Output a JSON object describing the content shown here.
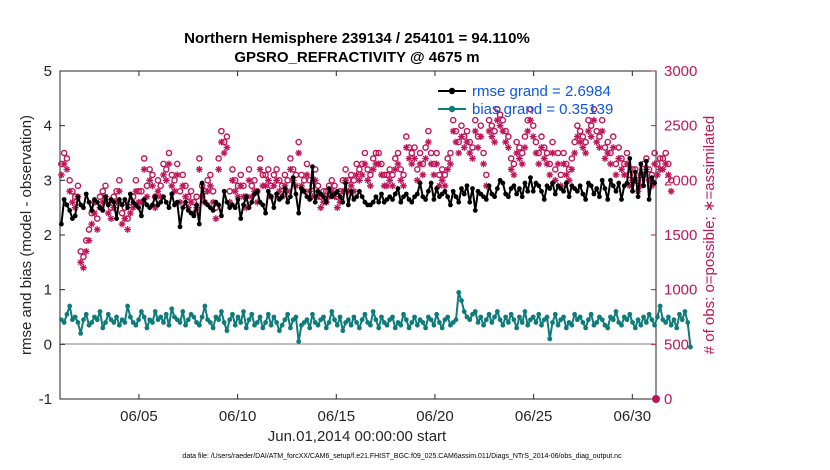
{
  "chart_data": {
    "type": "line",
    "title": "Northern Hemisphere 239134 / 254101 = 94.110%",
    "subtitle": "GPSRO_REFRACTIVITY @ 4675 m",
    "xlabel": "Jun.01,2014 00:00:00 start",
    "ylabel": "rmse and bias (model - observation)",
    "ylabel_right": "# of obs: o=possible; ∗=assimilated",
    "xlim": [
      1.0,
      31.2
    ],
    "ylim": [
      -1,
      5
    ],
    "ylim_right": [
      0,
      3000
    ],
    "x_ticks": [
      {
        "value": 5,
        "label": "06/05"
      },
      {
        "value": 10,
        "label": "06/10"
      },
      {
        "value": 15,
        "label": "06/15"
      },
      {
        "value": 20,
        "label": "06/20"
      },
      {
        "value": 25,
        "label": "06/25"
      },
      {
        "value": 30,
        "label": "06/30"
      }
    ],
    "y_ticks": [
      "-1",
      "0",
      "1",
      "2",
      "3",
      "4",
      "5"
    ],
    "y_ticks_right": [
      "0",
      "500",
      "1000",
      "1500",
      "2000",
      "2500",
      "3000"
    ],
    "zero_line": 0,
    "legend": {
      "position": "top-right",
      "entries": [
        "rmse grand  = 2.6984",
        "bias grand  = 0.35139"
      ]
    },
    "series": [
      {
        "name": "rmse",
        "color": "#000000",
        "values": [
          2.2,
          2.65,
          2.55,
          2.45,
          2.3,
          2.35,
          2.7,
          2.55,
          2.5,
          2.75,
          2.6,
          2.45,
          2.65,
          2.6,
          2.5,
          2.45,
          2.7,
          2.55,
          2.65,
          2.6,
          2.3,
          2.65,
          2.55,
          2.65,
          2.5,
          2.75,
          2.6,
          2.55,
          2.5,
          2.35,
          2.65,
          2.55,
          2.5,
          2.55,
          2.7,
          2.55,
          2.6,
          2.7,
          2.6,
          2.5,
          2.75,
          2.55,
          2.6,
          2.15,
          2.5,
          2.6,
          2.45,
          2.4,
          2.35,
          2.55,
          2.2,
          2.95,
          2.6,
          2.55,
          2.5,
          2.45,
          2.6,
          2.55,
          2.35,
          2.8,
          2.6,
          2.5,
          2.55,
          2.5,
          2.65,
          2.3,
          2.55,
          2.7,
          2.5,
          2.6,
          2.75,
          2.8,
          2.6,
          2.55,
          2.4,
          2.8,
          2.7,
          2.5,
          2.75,
          2.65,
          2.7,
          2.85,
          2.6,
          2.7,
          3.05,
          2.75,
          2.4,
          2.85,
          2.8,
          2.7,
          2.65,
          3.25,
          2.6,
          2.8,
          2.75,
          2.7,
          2.6,
          2.85,
          2.7,
          2.75,
          2.8,
          2.7,
          2.6,
          2.95,
          2.55,
          2.8,
          2.65,
          2.7,
          2.8,
          2.7,
          2.6,
          2.55,
          2.55,
          2.6,
          2.7,
          2.6,
          2.75,
          2.6,
          2.65,
          2.7,
          2.65,
          2.75,
          2.85,
          2.6,
          2.7,
          2.75,
          2.65,
          2.6,
          2.7,
          2.75,
          2.95,
          2.7,
          2.65,
          2.8,
          2.95,
          2.65,
          2.85,
          2.7,
          2.75,
          2.8,
          2.7,
          2.55,
          2.8,
          2.7,
          2.6,
          2.85,
          2.75,
          2.9,
          2.6,
          2.85,
          2.45,
          2.8,
          2.75,
          2.7,
          2.65,
          2.9,
          2.75,
          2.7,
          2.85,
          3.0,
          2.95,
          2.75,
          2.7,
          2.85,
          2.9,
          2.75,
          2.85,
          2.7,
          2.95,
          2.8,
          3.05,
          2.8,
          2.95,
          2.9,
          2.8,
          2.65,
          2.9,
          2.85,
          2.95,
          2.75,
          2.9,
          2.85,
          2.8,
          2.95,
          2.7,
          2.9,
          2.85,
          2.8,
          2.9,
          2.75,
          2.65,
          2.95,
          2.9,
          2.75,
          2.85,
          2.7,
          3.0,
          2.85,
          2.65,
          3.0,
          2.9,
          2.8,
          2.95,
          2.65,
          2.9,
          2.95,
          3.4,
          2.8,
          3.15,
          2.7,
          3.3,
          2.9,
          3.35,
          2.65,
          3.05,
          2.95
        ]
      },
      {
        "name": "bias",
        "color": "#0f7b7b",
        "values": [
          0.45,
          0.4,
          0.55,
          0.7,
          0.45,
          0.5,
          0.4,
          0.2,
          0.45,
          0.55,
          0.35,
          0.4,
          0.5,
          0.45,
          0.6,
          0.3,
          0.4,
          0.55,
          0.45,
          0.4,
          0.5,
          0.35,
          0.45,
          0.4,
          0.7,
          0.5,
          0.4,
          0.35,
          0.45,
          0.6,
          0.5,
          0.3,
          0.45,
          0.4,
          0.6,
          0.45,
          0.5,
          0.4,
          0.55,
          0.35,
          0.65,
          0.5,
          0.45,
          0.4,
          0.6,
          0.35,
          0.45,
          0.55,
          0.5,
          0.4,
          0.35,
          0.5,
          0.7,
          0.45,
          0.4,
          0.3,
          0.5,
          0.45,
          0.6,
          0.4,
          0.25,
          0.45,
          0.55,
          0.35,
          0.5,
          0.4,
          0.6,
          0.3,
          0.45,
          0.55,
          0.35,
          0.4,
          0.5,
          0.3,
          0.4,
          0.55,
          0.35,
          0.5,
          0.4,
          0.25,
          0.35,
          0.45,
          0.55,
          0.3,
          0.45,
          0.5,
          0.05,
          0.35,
          0.4,
          0.45,
          0.3,
          0.55,
          0.4,
          0.35,
          0.45,
          0.5,
          0.3,
          0.4,
          0.6,
          0.45,
          0.35,
          0.5,
          0.25,
          0.4,
          0.45,
          0.35,
          0.5,
          0.4,
          0.3,
          0.45,
          0.55,
          0.4,
          0.35,
          0.6,
          0.45,
          0.3,
          0.5,
          0.4,
          0.35,
          0.45,
          0.5,
          0.3,
          0.4,
          0.35,
          0.55,
          0.45,
          0.3,
          0.4,
          0.5,
          0.35,
          0.45,
          0.4,
          0.3,
          0.5,
          0.45,
          0.35,
          0.55,
          0.4,
          0.3,
          0.45,
          0.5,
          0.35,
          0.4,
          0.45,
          0.95,
          0.8,
          0.6,
          0.5,
          0.45,
          0.55,
          0.6,
          0.4,
          0.5,
          0.35,
          0.45,
          0.55,
          0.4,
          0.5,
          0.6,
          0.45,
          0.35,
          0.5,
          0.4,
          0.55,
          0.45,
          0.3,
          0.5,
          0.4,
          0.6,
          0.35,
          0.45,
          0.5,
          0.4,
          0.55,
          0.35,
          0.45,
          0.5,
          0.1,
          0.4,
          0.55,
          0.35,
          0.45,
          0.5,
          0.3,
          0.4,
          0.35,
          0.55,
          0.45,
          0.5,
          0.4,
          0.3,
          0.45,
          0.55,
          0.35,
          0.4,
          0.5,
          0.45,
          0.35,
          0.3,
          0.5,
          0.45,
          0.6,
          0.4,
          0.35,
          0.5,
          0.45,
          0.55,
          0.4,
          0.3,
          0.45,
          0.35,
          0.5,
          0.4,
          0.55,
          0.45,
          0.35,
          0.5,
          0.7,
          0.45,
          0.4,
          0.5,
          0.35,
          0.45,
          0.3,
          0.55,
          0.45,
          0.6,
          0.4,
          -0.05
        ]
      },
      {
        "name": "obs possible",
        "color": "#c0155a",
        "marker": "o",
        "values": [
          2150,
          2250,
          2200,
          2000,
          1900,
          1850,
          1950,
          1350,
          1300,
          1450,
          1550,
          1700,
          1800,
          1650,
          1850,
          1900,
          1950,
          1800,
          1750,
          1850,
          1900,
          2000,
          1700,
          1750,
          1650,
          1800,
          1850,
          2000,
          1900,
          1900,
          2200,
          1950,
          2100,
          2050,
          1850,
          2000,
          1950,
          2150,
          2100,
          2250,
          2050,
          2000,
          2150,
          1900,
          2050,
          1950,
          1850,
          1900,
          1800,
          1850,
          2200,
          1950,
          1900,
          2000,
          2050,
          1900,
          1750,
          2200,
          2450,
          2350,
          2400,
          1900,
          2100,
          2000,
          1950,
          2050,
          1950,
          1850,
          2100,
          1950,
          2000,
          1900,
          2200,
          2050,
          2050,
          2100,
          1950,
          2050,
          2100,
          2000,
          1950,
          2050,
          2000,
          2200,
          2100,
          2050,
          2350,
          2050,
          2000,
          2150,
          2000,
          1950,
          2100,
          1950,
          1850,
          1900,
          1900,
          1950,
          2000,
          1950,
          1850,
          1900,
          2000,
          2100,
          2000,
          2050,
          2000,
          2150,
          2100,
          2150,
          2250,
          2100,
          2050,
          2200,
          2250,
          2250,
          2150,
          2050,
          2050,
          2100,
          2050,
          2200,
          2250,
          2100,
          2050,
          2400,
          2300,
          2250,
          2300,
          2100,
          2250,
          2150,
          2300,
          2450,
          2250,
          2150,
          2250,
          2050,
          2100,
          2050,
          2200,
          2250,
          2550,
          2450,
          2350,
          2500,
          2400,
          2450,
          2350,
          2300,
          2550,
          2400,
          2500,
          2250,
          2050,
          2550,
          2500,
          2450,
          2650,
          2600,
          2550,
          2450,
          2400,
          2200,
          2150,
          2350,
          2300,
          2250,
          2400,
          2550,
          2650,
          2500,
          2350,
          2250,
          2400,
          2300,
          2250,
          2150,
          2350,
          2100,
          2250,
          2050,
          2250,
          2150,
          2100,
          2200,
          2350,
          2500,
          2450,
          2400,
          2350,
          2550,
          2500,
          2650,
          2450,
          2400,
          2550,
          2300,
          2350,
          2250,
          2400,
          2150,
          2300,
          2200,
          2150,
          2250,
          2050,
          2100,
          2100,
          2000,
          2050,
          2150,
          2200,
          2100,
          2050,
          2250,
          2150,
          2200,
          2200,
          2250,
          2150,
          2000
        ]
      },
      {
        "name": "obs assimilated",
        "color": "#c0155a",
        "marker": "*",
        "values": [
          2050,
          2150,
          2100,
          1900,
          1800,
          1750,
          1850,
          1250,
          1200,
          1350,
          1450,
          1600,
          1700,
          1550,
          1750,
          1800,
          1850,
          1700,
          1650,
          1750,
          1800,
          1900,
          1600,
          1650,
          1550,
          1700,
          1750,
          1900,
          1800,
          1800,
          2100,
          1850,
          2000,
          1950,
          1750,
          1900,
          1850,
          2050,
          2000,
          2150,
          1950,
          1900,
          2050,
          1800,
          1950,
          1850,
          1750,
          1800,
          1700,
          1750,
          2100,
          1850,
          1800,
          1900,
          1950,
          1800,
          1650,
          2100,
          2350,
          2250,
          2300,
          1800,
          2000,
          1900,
          1850,
          1950,
          1850,
          1750,
          2000,
          1850,
          1900,
          1800,
          2100,
          1950,
          1950,
          2000,
          1850,
          1950,
          2000,
          1900,
          1850,
          1950,
          1900,
          2100,
          2000,
          1950,
          2250,
          1950,
          1900,
          2050,
          1900,
          1850,
          2000,
          1850,
          1750,
          1800,
          1800,
          1850,
          1900,
          1850,
          1750,
          1800,
          1900,
          2000,
          1900,
          1950,
          1900,
          2050,
          2000,
          2050,
          2150,
          2000,
          1950,
          2100,
          2150,
          2150,
          2050,
          1950,
          1950,
          2000,
          1950,
          2100,
          2150,
          2000,
          1950,
          2300,
          2200,
          2150,
          2200,
          2000,
          2150,
          2050,
          2200,
          2350,
          2150,
          2050,
          2150,
          1950,
          2000,
          1950,
          2100,
          2150,
          2450,
          2350,
          2250,
          2400,
          2300,
          2350,
          2250,
          2200,
          2450,
          2300,
          2400,
          2150,
          1950,
          2450,
          2400,
          2350,
          2550,
          2500,
          2450,
          2350,
          2300,
          2100,
          2050,
          2250,
          2200,
          2150,
          2300,
          2450,
          2550,
          2400,
          2250,
          2150,
          2300,
          2200,
          2150,
          2050,
          2250,
          2000,
          2150,
          1950,
          2150,
          2050,
          2000,
          2100,
          2250,
          2400,
          2350,
          2300,
          2250,
          2450,
          2400,
          2550,
          2350,
          2300,
          2450,
          2200,
          2250,
          2150,
          2300,
          2050,
          2200,
          2100,
          2050,
          2150,
          1950,
          2000,
          2000,
          1900,
          1950,
          2050,
          2100,
          2000,
          1950,
          2150,
          2050,
          2100,
          2100,
          2150,
          2050,
          1900
        ]
      }
    ]
  },
  "footer": "data file: /Users/raeder/DAI/ATM_forcXX/CAM6_setup/f.e21.FHIST_BGC.f09_025.CAM6assim.011/Diags_NTrS_2014-06/obs_diag_output.nc"
}
